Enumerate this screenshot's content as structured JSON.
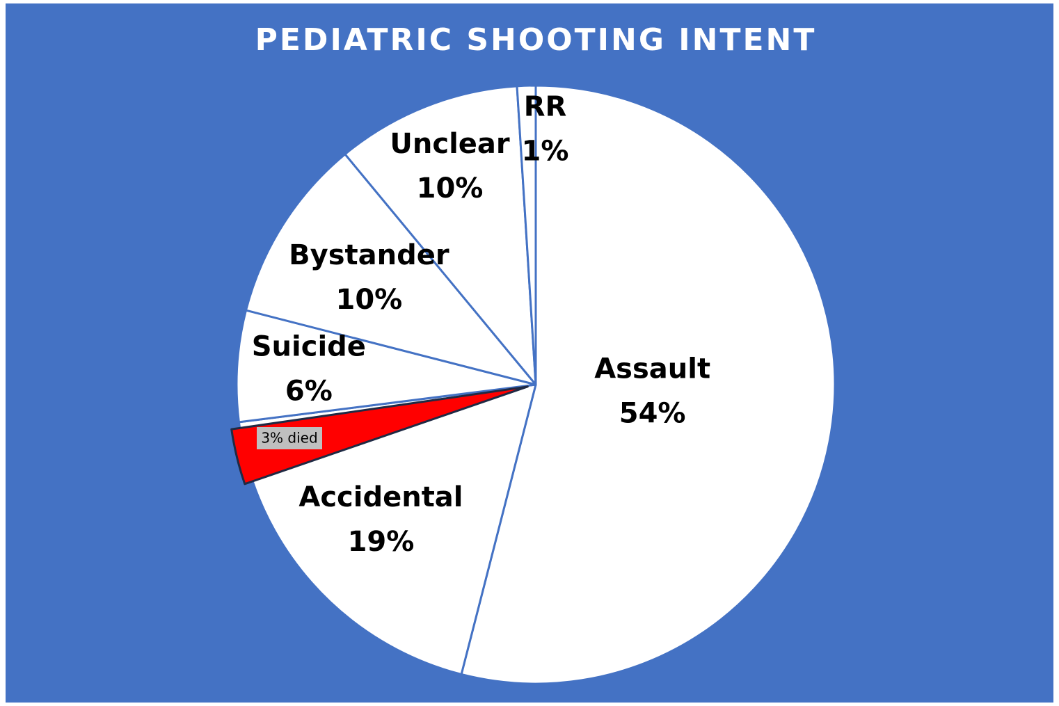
{
  "chart_data": {
    "type": "pie",
    "title": "PEDIATRIC SHOOTING INTENT",
    "categories": [
      "Assault",
      "Accidental",
      "Suicide",
      "Bystander",
      "Unclear",
      "RR"
    ],
    "values": [
      54,
      19,
      6,
      10,
      10,
      1
    ],
    "value_labels": [
      "54%",
      "19%",
      "6%",
      "10%",
      "10%",
      "1%"
    ],
    "color": "#ffffff",
    "background": "#4472c4",
    "annotation": {
      "text": "3% died",
      "value": 3,
      "color": "#ff0000",
      "of": "Accidental"
    }
  }
}
